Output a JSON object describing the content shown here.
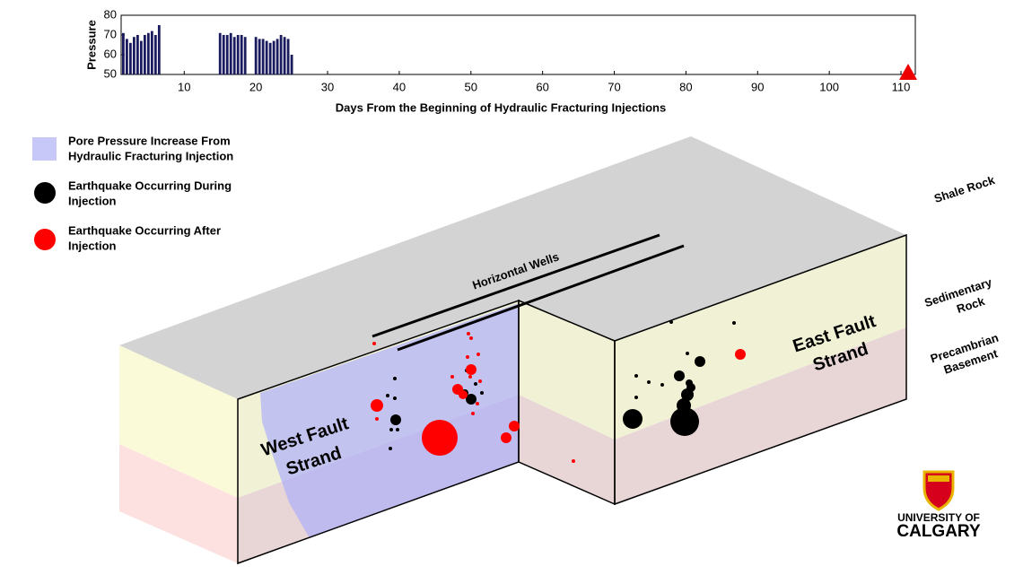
{
  "chart_data": {
    "type": "bar",
    "y_label": "Pressure",
    "x_label": "Days From the Beginning of Hydraulic Fracturing Injections",
    "x": [
      1.5,
      2,
      2.5,
      3,
      3.5,
      4,
      4.5,
      5,
      5.5,
      6,
      6.5,
      15,
      15.5,
      16,
      16.5,
      17,
      17.5,
      18,
      18.5,
      20,
      20.5,
      21,
      21.5,
      22,
      22.5,
      23,
      23.5,
      24,
      24.5,
      25
    ],
    "values": [
      71,
      68,
      66,
      69,
      70,
      67,
      70,
      71,
      72,
      70,
      75,
      71,
      70,
      70,
      71,
      69,
      70,
      70,
      69,
      69,
      68,
      68,
      67,
      66,
      67,
      68,
      70,
      69,
      68,
      60
    ],
    "color": "#1a1a5e",
    "xlim": [
      1.2,
      112
    ],
    "ylim": [
      50,
      80
    ],
    "xticks": [
      10,
      20,
      30,
      40,
      50,
      60,
      70,
      80,
      90,
      100,
      110
    ],
    "yticks": [
      50,
      60,
      70,
      80
    ],
    "marker": {
      "x": 111,
      "y": 50,
      "color": "#ee0000"
    }
  },
  "legend": [
    {
      "lines": [
        "Pore Pressure Increase From",
        "Hydraulic Fracturing Injection"
      ]
    },
    {
      "lines": [
        "Earthquake Occurring During",
        "Injection"
      ]
    },
    {
      "lines": [
        "Earthquake Occurring After",
        "Injection"
      ]
    }
  ],
  "labels": {
    "wells": "Horizontal Wells",
    "west": [
      "West Fault",
      "Strand"
    ],
    "east": [
      "East Fault",
      "Strand"
    ],
    "shale": "Shale Rock",
    "sedimentary": [
      "Sedimentary",
      "Rock"
    ],
    "precambrian": [
      "Precambrian",
      "Basement"
    ]
  },
  "logo": {
    "line1": "UNIVERSITY OF",
    "line2": "CALGARY"
  }
}
